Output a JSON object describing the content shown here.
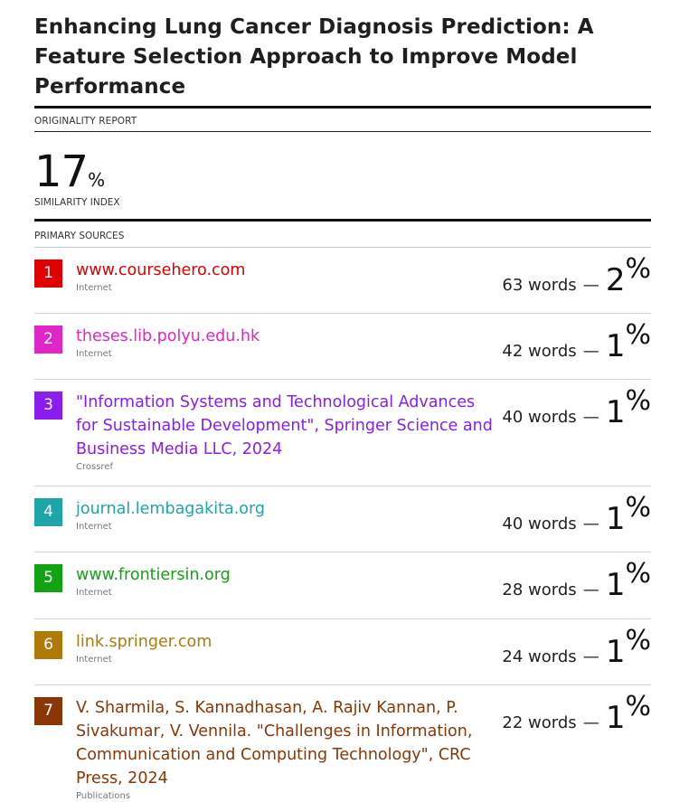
{
  "document": {
    "title": "Enhancing Lung Cancer Diagnosis Prediction: A Feature Selection Approach to Improve Model Performance",
    "report_label": "ORIGINALITY REPORT",
    "similarity_value": "17",
    "similarity_unit": "%",
    "similarity_label": "SIMILARITY INDEX",
    "primary_sources_label": "PRIMARY SOURCES"
  },
  "sources": [
    {
      "rank": "1",
      "name": "www.coursehero.com",
      "type": "Internet",
      "words": "63 words",
      "dash": "—",
      "percent": "2",
      "percent_sign": "%",
      "color": "#e00000"
    },
    {
      "rank": "2",
      "name": "theses.lib.polyu.edu.hk",
      "type": "Internet",
      "words": "42 words",
      "dash": "—",
      "percent": "1",
      "percent_sign": "%",
      "color": "#e026c6"
    },
    {
      "rank": "3",
      "name": "\"Information Systems and Technological Advances for Sustainable Development\", Springer Science and Business Media LLC, 2024",
      "type": "Crossref",
      "words": "40 words",
      "dash": "—",
      "percent": "1",
      "percent_sign": "%",
      "color": "#8a1cf0"
    },
    {
      "rank": "4",
      "name": "journal.lembagakita.org",
      "type": "Internet",
      "words": "40 words",
      "dash": "—",
      "percent": "1",
      "percent_sign": "%",
      "color": "#1fa5a8"
    },
    {
      "rank": "5",
      "name": "www.frontiersin.org",
      "type": "Internet",
      "words": "28 words",
      "dash": "—",
      "percent": "1",
      "percent_sign": "%",
      "color": "#12a312"
    },
    {
      "rank": "6",
      "name": "link.springer.com",
      "type": "Internet",
      "words": "24 words",
      "dash": "—",
      "percent": "1",
      "percent_sign": "%",
      "color": "#b07a08"
    },
    {
      "rank": "7",
      "name": "V. Sharmila, S. Kannadhasan, A. Rajiv Kannan, P. Sivakumar, V. Vennila. \"Challenges in Information, Communication and Computing Technology\", CRC Press, 2024",
      "type": "Publications",
      "words": "22 words",
      "dash": "—",
      "percent": "1",
      "percent_sign": "%",
      "color": "#8a3606"
    }
  ]
}
